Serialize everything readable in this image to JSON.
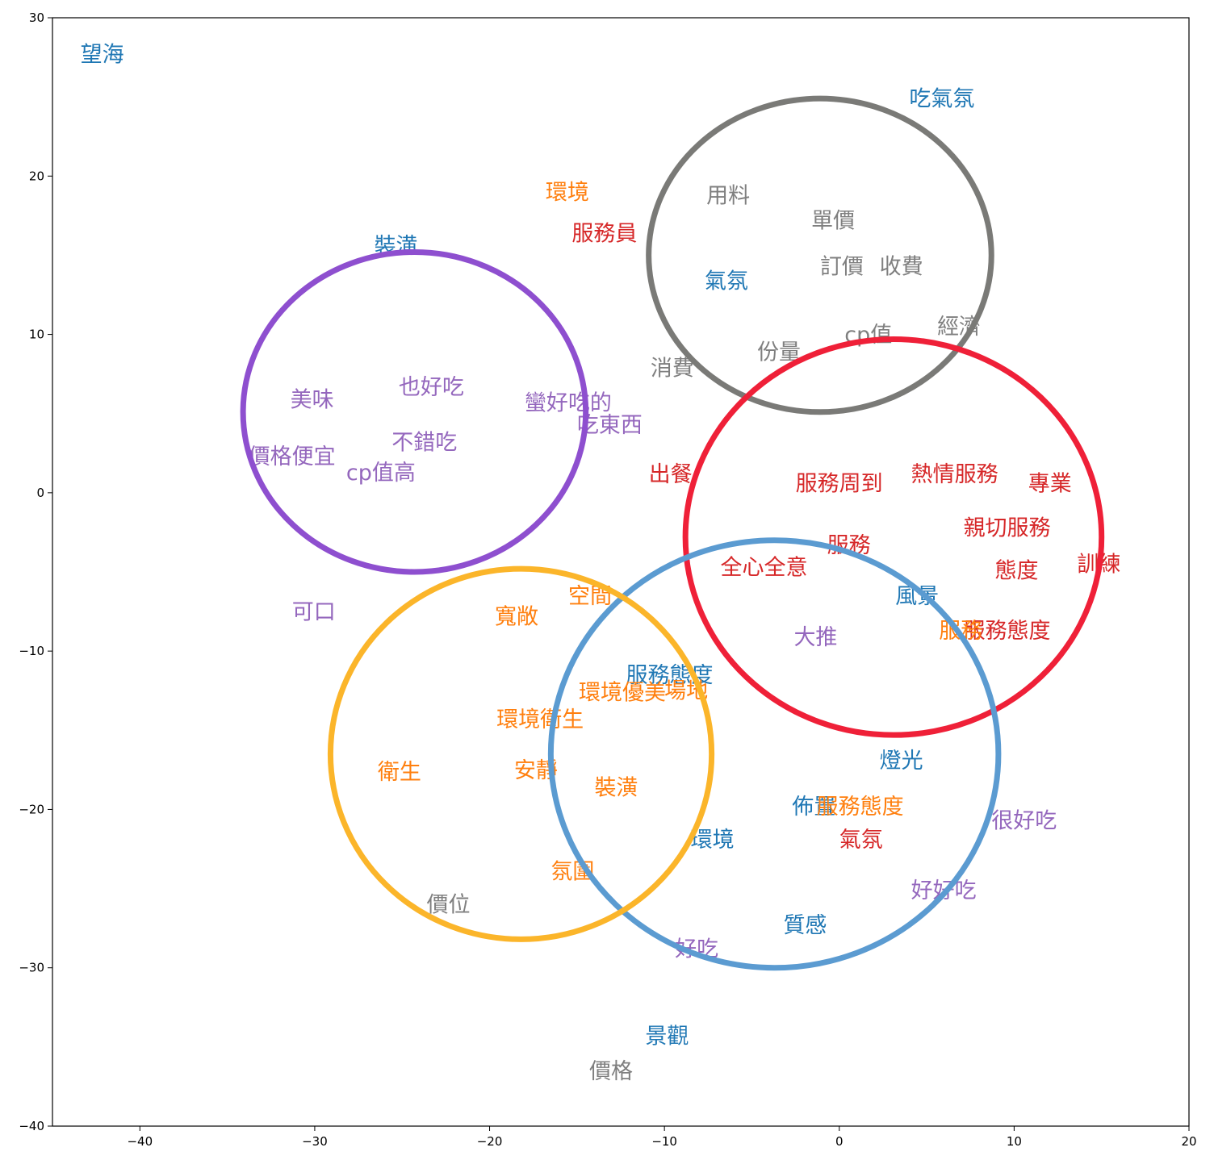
{
  "chart_data": {
    "type": "scatter",
    "xlim": [
      -45,
      20
    ],
    "ylim": [
      -40,
      30
    ],
    "x_ticks": [
      -40,
      -30,
      -20,
      -10,
      0,
      10,
      20
    ],
    "y_ticks": [
      30,
      20,
      10,
      0,
      -10,
      -20,
      -30,
      -40
    ],
    "x_tick_labels": [
      "−40",
      "−30",
      "−20",
      "−10",
      "0",
      "10",
      "20"
    ],
    "y_tick_labels": [
      "30",
      "20",
      "10",
      "0",
      "−10",
      "−20",
      "−30",
      "−40"
    ],
    "grid": false,
    "colors": {
      "blue": "#1f77b4",
      "orange": "#ff7f0e",
      "red": "#d62728",
      "purple": "#9467bd",
      "gray": "#7f7f7f"
    },
    "labels": [
      {
        "text": "望海",
        "x": -43.4,
        "y": 27.6,
        "color": "blue"
      },
      {
        "text": "吃氣氛",
        "x": 4.0,
        "y": 24.8,
        "color": "blue"
      },
      {
        "text": "環境",
        "x": -16.8,
        "y": 18.9,
        "color": "orange"
      },
      {
        "text": "用料",
        "x": -7.6,
        "y": 18.7,
        "color": "gray"
      },
      {
        "text": "單價",
        "x": -1.6,
        "y": 17.1,
        "color": "gray"
      },
      {
        "text": "服務員",
        "x": -15.3,
        "y": 16.3,
        "color": "red"
      },
      {
        "text": "裝潢",
        "x": -26.6,
        "y": 15.5,
        "color": "blue"
      },
      {
        "text": "訂價",
        "x": -1.1,
        "y": 14.2,
        "color": "gray"
      },
      {
        "text": "收費",
        "x": 2.3,
        "y": 14.2,
        "color": "gray"
      },
      {
        "text": "氣氛",
        "x": -7.7,
        "y": 13.3,
        "color": "blue"
      },
      {
        "text": "經濟",
        "x": 5.6,
        "y": 10.4,
        "color": "gray"
      },
      {
        "text": "cp值",
        "x": 0.3,
        "y": 9.9,
        "color": "gray"
      },
      {
        "text": "份量",
        "x": -4.7,
        "y": 8.8,
        "color": "gray"
      },
      {
        "text": "消費",
        "x": -10.8,
        "y": 7.8,
        "color": "gray"
      },
      {
        "text": "也好吃",
        "x": -25.2,
        "y": 6.6,
        "color": "purple"
      },
      {
        "text": "美味",
        "x": -31.4,
        "y": 5.8,
        "color": "purple"
      },
      {
        "text": "蠻好吃的",
        "x": -18.0,
        "y": 5.6,
        "color": "purple"
      },
      {
        "text": "吃東西",
        "x": -15.0,
        "y": 4.2,
        "color": "purple"
      },
      {
        "text": "不錯吃",
        "x": -25.6,
        "y": 3.1,
        "color": "purple"
      },
      {
        "text": "價格便宜",
        "x": -33.8,
        "y": 2.2,
        "color": "purple"
      },
      {
        "text": "cp值高",
        "x": -28.2,
        "y": 1.2,
        "color": "purple"
      },
      {
        "text": "出餐",
        "x": -10.9,
        "y": 1.1,
        "color": "red"
      },
      {
        "text": "熱情服務",
        "x": 4.1,
        "y": 1.1,
        "color": "red"
      },
      {
        "text": "服務周到",
        "x": -2.5,
        "y": 0.5,
        "color": "red"
      },
      {
        "text": "專業",
        "x": 10.8,
        "y": 0.5,
        "color": "red"
      },
      {
        "text": "親切服務",
        "x": 7.1,
        "y": -2.3,
        "color": "red"
      },
      {
        "text": "服務",
        "x": -0.7,
        "y": -3.4,
        "color": "red"
      },
      {
        "text": "訓練",
        "x": 13.6,
        "y": -4.6,
        "color": "red"
      },
      {
        "text": "全心全意",
        "x": -6.8,
        "y": -4.8,
        "color": "red"
      },
      {
        "text": "態度",
        "x": 8.9,
        "y": -5.0,
        "color": "red"
      },
      {
        "text": "風景",
        "x": 3.2,
        "y": -6.6,
        "color": "blue"
      },
      {
        "text": "空間",
        "x": -15.5,
        "y": -6.6,
        "color": "orange"
      },
      {
        "text": "寬敞",
        "x": -19.7,
        "y": -7.9,
        "color": "orange"
      },
      {
        "text": "可口",
        "x": -31.3,
        "y": -7.6,
        "color": "purple"
      },
      {
        "text": "服務態度",
        "x": 7.1,
        "y": -8.8,
        "color": "red"
      },
      {
        "text": "服務",
        "x": 5.7,
        "y": -8.8,
        "color": "orange"
      },
      {
        "text": "大推",
        "x": -2.6,
        "y": -9.2,
        "color": "purple"
      },
      {
        "text": "服務態度",
        "x": -12.2,
        "y": -11.6,
        "color": "blue"
      },
      {
        "text": "環境優美",
        "x": -14.9,
        "y": -12.7,
        "color": "orange"
      },
      {
        "text": "場地",
        "x": -10.0,
        "y": -12.6,
        "color": "orange"
      },
      {
        "text": "環境衛生",
        "x": -19.6,
        "y": -14.4,
        "color": "orange"
      },
      {
        "text": "燈光",
        "x": 2.3,
        "y": -17.0,
        "color": "blue"
      },
      {
        "text": "衛生",
        "x": -26.4,
        "y": -17.7,
        "color": "orange"
      },
      {
        "text": "安靜",
        "x": -18.6,
        "y": -17.6,
        "color": "orange"
      },
      {
        "text": "裝潢",
        "x": -14.0,
        "y": -18.7,
        "color": "orange"
      },
      {
        "text": "佈置",
        "x": -2.7,
        "y": -19.9,
        "color": "blue"
      },
      {
        "text": "服務態度",
        "x": -1.3,
        "y": -19.9,
        "color": "orange"
      },
      {
        "text": "很好吃",
        "x": 8.7,
        "y": -20.8,
        "color": "purple"
      },
      {
        "text": "環境",
        "x": -8.5,
        "y": -22.0,
        "color": "blue"
      },
      {
        "text": "氣氛",
        "x": 0.0,
        "y": -22.0,
        "color": "red"
      },
      {
        "text": "氛圍",
        "x": -16.5,
        "y": -24.0,
        "color": "orange"
      },
      {
        "text": "好好吃",
        "x": 4.1,
        "y": -25.2,
        "color": "purple"
      },
      {
        "text": "價位",
        "x": -23.6,
        "y": -26.1,
        "color": "gray"
      },
      {
        "text": "質感",
        "x": -3.2,
        "y": -27.4,
        "color": "blue"
      },
      {
        "text": "好吃",
        "x": -9.4,
        "y": -28.9,
        "color": "purple"
      },
      {
        "text": "景觀",
        "x": -11.1,
        "y": -34.4,
        "color": "blue"
      },
      {
        "text": "價格",
        "x": -14.3,
        "y": -36.6,
        "color": "gray"
      }
    ],
    "clusters": [
      {
        "color": "#8e4fcf",
        "cx": -24.3,
        "cy": 5.1,
        "rx": 9.8,
        "ry": 10.1
      },
      {
        "color": "#7a7a77",
        "cx": -1.1,
        "cy": 15.0,
        "rx": 9.8,
        "ry": 9.9
      },
      {
        "color": "#ef2038",
        "cx": 3.1,
        "cy": -2.8,
        "rx": 11.9,
        "ry": 12.5
      },
      {
        "color": "#5b9bd1",
        "cx": -3.7,
        "cy": -16.5,
        "rx": 12.8,
        "ry": 13.5
      },
      {
        "color": "#fbb52a",
        "cx": -18.2,
        "cy": -16.5,
        "rx": 10.9,
        "ry": 11.7
      }
    ]
  }
}
